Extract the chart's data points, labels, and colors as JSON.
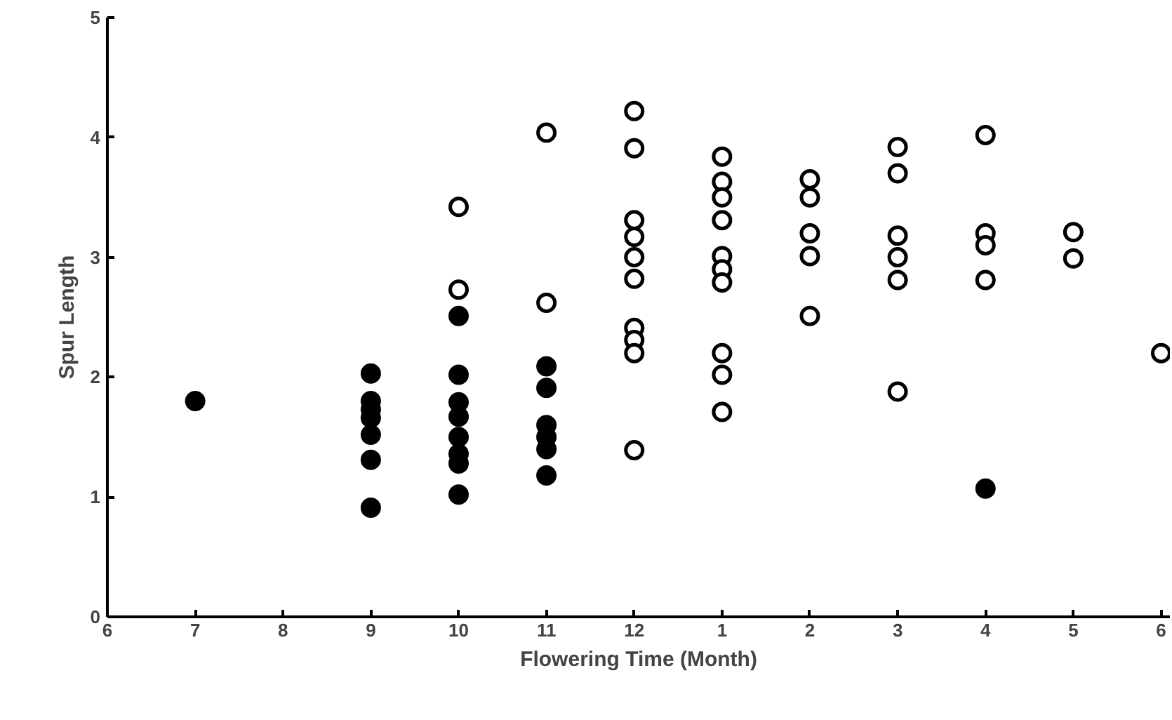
{
  "chart_data": {
    "type": "scatter",
    "xlabel": "Flowering Time (Month)",
    "ylabel": "Spur Length",
    "categories": [
      "6",
      "7",
      "8",
      "9",
      "10",
      "11",
      "12",
      "1",
      "2",
      "3",
      "4",
      "5",
      "6"
    ],
    "ylim": [
      0,
      5
    ],
    "yticks": [
      0,
      1,
      2,
      3,
      4,
      5
    ],
    "grid": false,
    "marker": "circle",
    "series": [
      {
        "color": "#000000",
        "x": [
          "7",
          "9",
          "9",
          "9",
          "9",
          "9",
          "9",
          "9",
          "10",
          "10",
          "10",
          "10",
          "10",
          "10",
          "10",
          "10",
          "11",
          "11",
          "11",
          "11",
          "11",
          "11",
          "4"
        ],
        "values": [
          1.8,
          2.03,
          1.8,
          1.73,
          1.66,
          1.52,
          1.31,
          0.91,
          2.51,
          2.02,
          1.79,
          1.67,
          1.5,
          1.36,
          1.28,
          1.02,
          2.09,
          1.91,
          1.6,
          1.5,
          1.4,
          1.18,
          1.07
        ]
      },
      {
        "color": "#ffffff",
        "x": [
          "10",
          "10",
          "11",
          "11",
          "12",
          "12",
          "12",
          "12",
          "12",
          "12",
          "12",
          "12",
          "12",
          "12",
          "1",
          "1",
          "1",
          "1",
          "1",
          "1",
          "1",
          "1",
          "1",
          "1",
          "2",
          "2",
          "2",
          "2",
          "2",
          "3",
          "3",
          "3",
          "3",
          "3",
          "3",
          "4",
          "4",
          "4",
          "4",
          "5",
          "5"
        ],
        "values": [
          3.42,
          2.73,
          4.04,
          2.62,
          4.22,
          3.91,
          3.31,
          3.17,
          3.0,
          2.82,
          2.41,
          2.31,
          2.2,
          1.39,
          3.84,
          3.63,
          3.5,
          3.31,
          3.01,
          2.9,
          2.79,
          2.2,
          2.02,
          1.71,
          3.65,
          3.5,
          3.2,
          3.01,
          2.51,
          3.92,
          3.7,
          3.18,
          3.0,
          2.81,
          1.88,
          4.02,
          3.2,
          3.1,
          2.81,
          3.21,
          2.99
        ]
      },
      {
        "color": "#ffffff",
        "values": [
          null,
          null,
          null,
          null,
          null,
          null,
          null,
          null,
          null,
          null,
          null,
          null,
          2.2
        ]
      }
    ]
  }
}
